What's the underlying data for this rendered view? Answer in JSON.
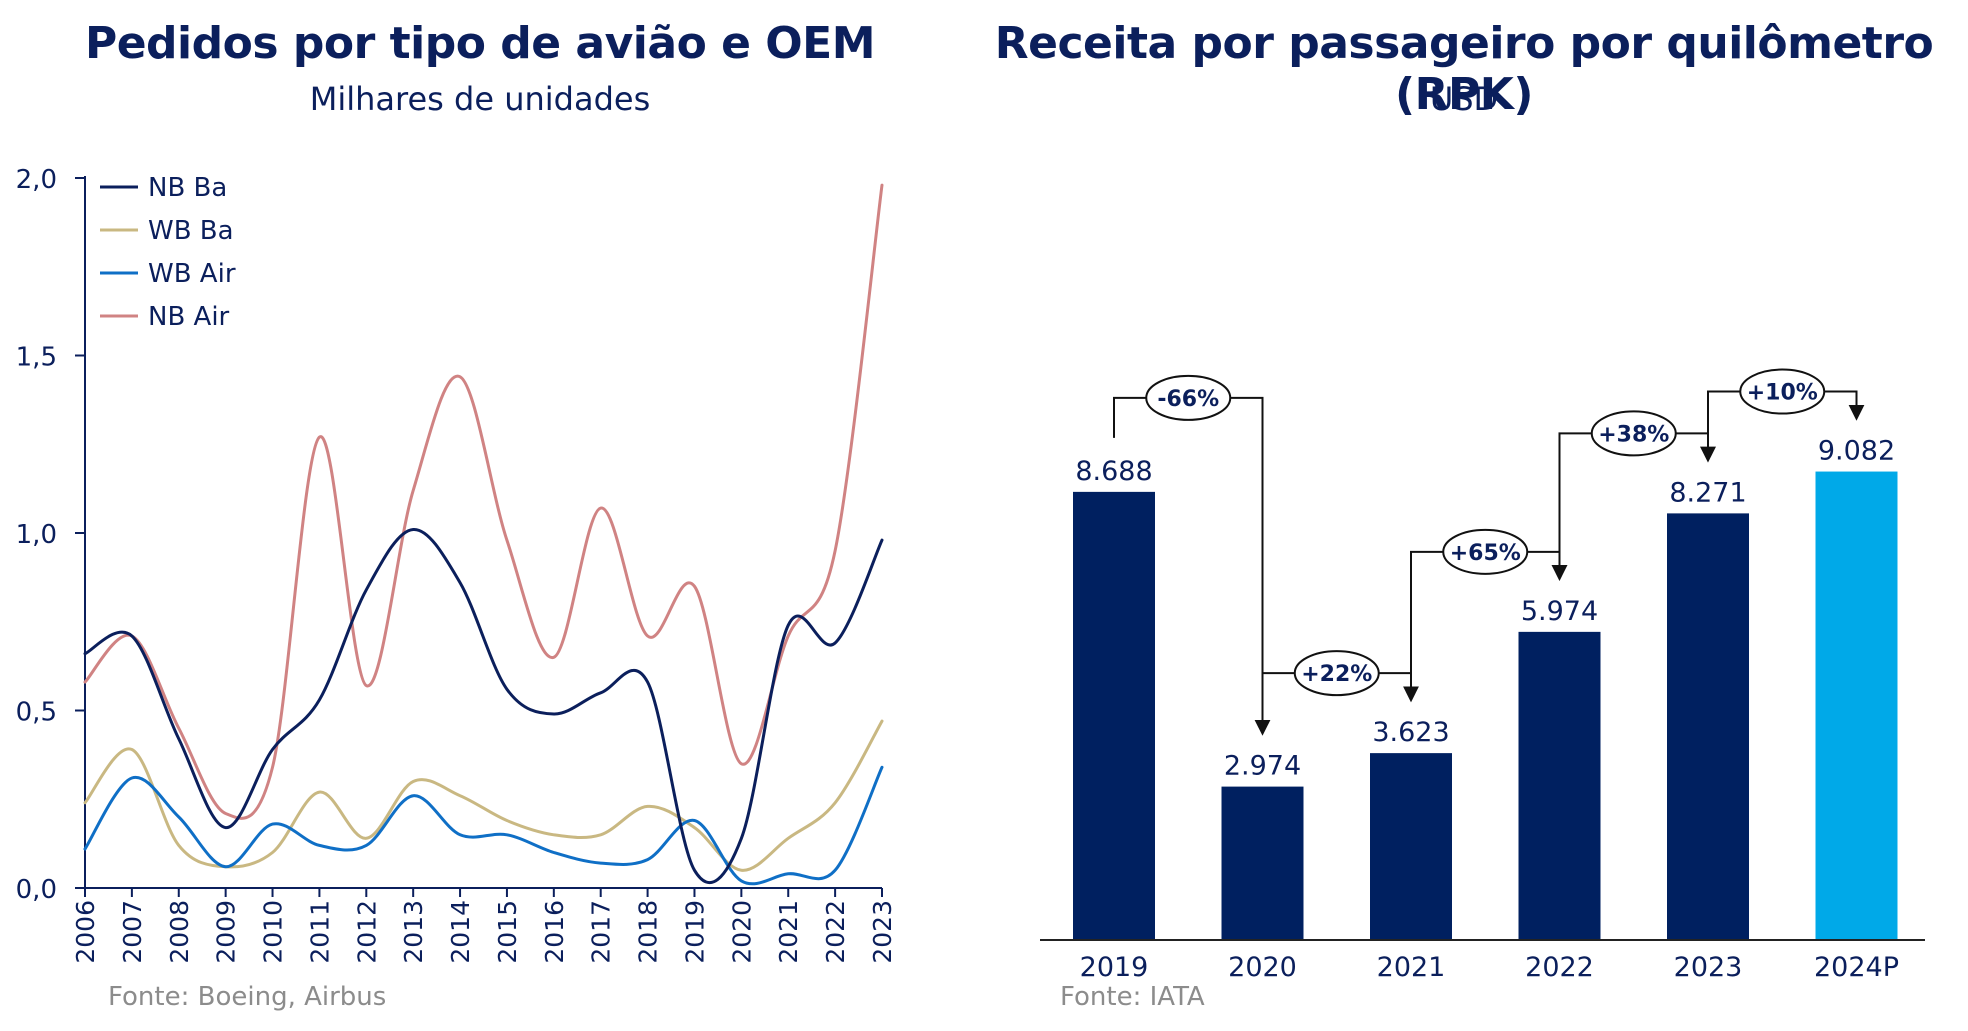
{
  "colors": {
    "title": "#0b1f5c",
    "axis": "#0b1f5c",
    "source": "#8c8c8c",
    "bar_dark": "#002060",
    "bar_highlight": "#00a9e8"
  },
  "left_chart": {
    "title": "Pedidos por tipo de avião e OEM",
    "subtitle": "Milhares de unidades",
    "source": "Fonte: Boeing, Airbus"
  },
  "right_chart": {
    "title": "Receita por passageiro por quilômetro (RPK)",
    "subtitle": "USD",
    "source": "Fonte: IATA"
  },
  "chart_data": [
    {
      "type": "line",
      "title": "Pedidos por tipo de avião e OEM",
      "subtitle": "Milhares de unidades",
      "x": [
        "2006",
        "2007",
        "2008",
        "2009",
        "2010",
        "2011",
        "2012",
        "2013",
        "2014",
        "2015",
        "2016",
        "2017",
        "2018",
        "2019",
        "2020",
        "2021",
        "2022",
        "2023"
      ],
      "y_ticks": [
        "0,0",
        "0,5",
        "1,0",
        "1,5",
        "2,0"
      ],
      "ylim": [
        0,
        2.0
      ],
      "legend_position": "top-left",
      "grid": false,
      "series": [
        {
          "name": "NB Ba",
          "color": "#0b1f5c",
          "values": [
            0.66,
            0.71,
            0.42,
            0.17,
            0.39,
            0.53,
            0.84,
            1.01,
            0.86,
            0.56,
            0.49,
            0.55,
            0.58,
            0.05,
            0.14,
            0.74,
            0.69,
            0.98
          ]
        },
        {
          "name": "WB Ba",
          "color": "#c9b882",
          "values": [
            0.24,
            0.39,
            0.12,
            0.06,
            0.1,
            0.27,
            0.14,
            0.3,
            0.26,
            0.19,
            0.15,
            0.15,
            0.23,
            0.17,
            0.05,
            0.14,
            0.24,
            0.47
          ]
        },
        {
          "name": "WB Air",
          "color": "#0f6fc6",
          "values": [
            0.11,
            0.31,
            0.2,
            0.06,
            0.18,
            0.12,
            0.12,
            0.26,
            0.15,
            0.15,
            0.1,
            0.07,
            0.08,
            0.19,
            0.02,
            0.04,
            0.05,
            0.34
          ]
        },
        {
          "name": "NB Air",
          "color": "#d08383",
          "values": [
            0.58,
            0.71,
            0.45,
            0.21,
            0.34,
            1.27,
            0.57,
            1.12,
            1.44,
            0.98,
            0.65,
            1.07,
            0.71,
            0.85,
            0.35,
            0.71,
            0.95,
            1.98
          ]
        }
      ]
    },
    {
      "type": "bar",
      "title": "Receita por passageiro por quilômetro (RPK)",
      "subtitle": "USD",
      "categories": [
        "2019",
        "2020",
        "2021",
        "2022",
        "2023",
        "2024P"
      ],
      "values": [
        8688,
        2974,
        3623,
        5974,
        8271,
        9082
      ],
      "value_labels": [
        "8.688",
        "2.974",
        "3.623",
        "5.974",
        "8.271",
        "9.082"
      ],
      "highlight": [
        false,
        false,
        false,
        false,
        false,
        true
      ],
      "ylim": [
        0,
        11000
      ],
      "changes": [
        "-66%",
        "+22%",
        "+65%",
        "+38%",
        "+10%"
      ]
    }
  ]
}
